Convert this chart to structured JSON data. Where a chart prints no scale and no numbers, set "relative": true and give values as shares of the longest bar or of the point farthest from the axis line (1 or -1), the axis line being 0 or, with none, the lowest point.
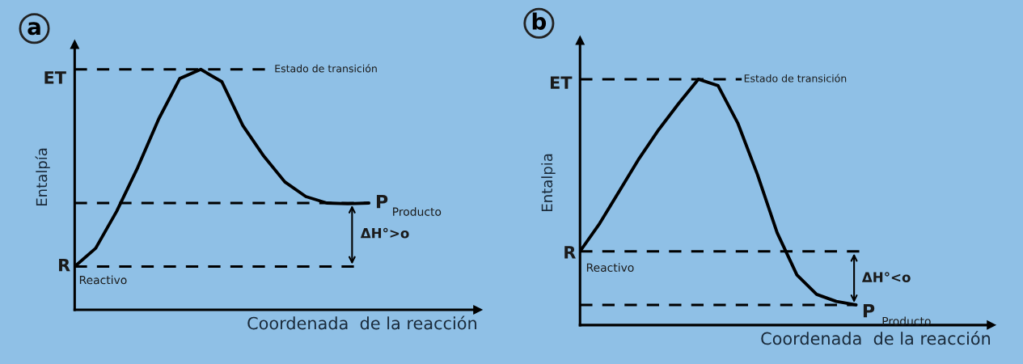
{
  "chart_data": [
    {
      "type": "line",
      "title": "a",
      "xlabel": "Coordenada  de la reacción",
      "ylabel": "Entalpía",
      "relative": true,
      "line_style": "solid",
      "marker": "none",
      "categories": [
        null,
        null,
        null,
        null,
        null,
        null,
        null,
        null,
        null,
        null,
        null,
        null,
        null,
        null,
        null
      ],
      "series": [
        {
          "color": "#000000",
          "values": [
            0.18,
            0.256,
            0.41,
            0.592,
            0.794,
            0.962,
            1.0,
            0.949,
            0.767,
            0.639,
            0.532,
            0.471,
            0.444,
            0.441,
            0.444
          ]
        }
      ],
      "ref_lines": [
        {
          "axis": "y",
          "value": 1.0,
          "line_style": "dashed",
          "color": "#000000"
        },
        {
          "axis": "y",
          "value": 0.444,
          "line_style": "dashed",
          "color": "#000000"
        },
        {
          "axis": "y",
          "value": 0.18,
          "line_style": "dashed",
          "color": "#000000"
        }
      ],
      "annotations": [
        "ET",
        "Estado de transición",
        "P",
        "Producto",
        "ΔH°>o",
        "R",
        "Reactivo"
      ]
    },
    {
      "type": "line",
      "title": "b",
      "xlabel": "Coordenada  de la reacción",
      "ylabel": "Entalpia",
      "relative": true,
      "line_style": "solid",
      "marker": "none",
      "categories": [
        null,
        null,
        null,
        null,
        null,
        null,
        null,
        null,
        null,
        null,
        null,
        null,
        null,
        null,
        null
      ],
      "series": [
        {
          "color": "#000000",
          "values": [
            0.3,
            0.414,
            0.546,
            0.678,
            0.796,
            0.901,
            1.0,
            0.974,
            0.822,
            0.612,
            0.375,
            0.204,
            0.125,
            0.096,
            0.082
          ]
        }
      ],
      "ref_lines": [
        {
          "axis": "y",
          "value": 1.0,
          "line_style": "dashed",
          "color": "#000000"
        },
        {
          "axis": "y",
          "value": 0.3,
          "line_style": "dashed",
          "color": "#000000"
        },
        {
          "axis": "y",
          "value": 0.082,
          "line_style": "dashed",
          "color": "#000000"
        }
      ],
      "annotations": [
        "ET",
        "Estado de transición",
        "R",
        "Reactivo",
        "ΔH°<o",
        "P",
        "Producto"
      ]
    }
  ]
}
